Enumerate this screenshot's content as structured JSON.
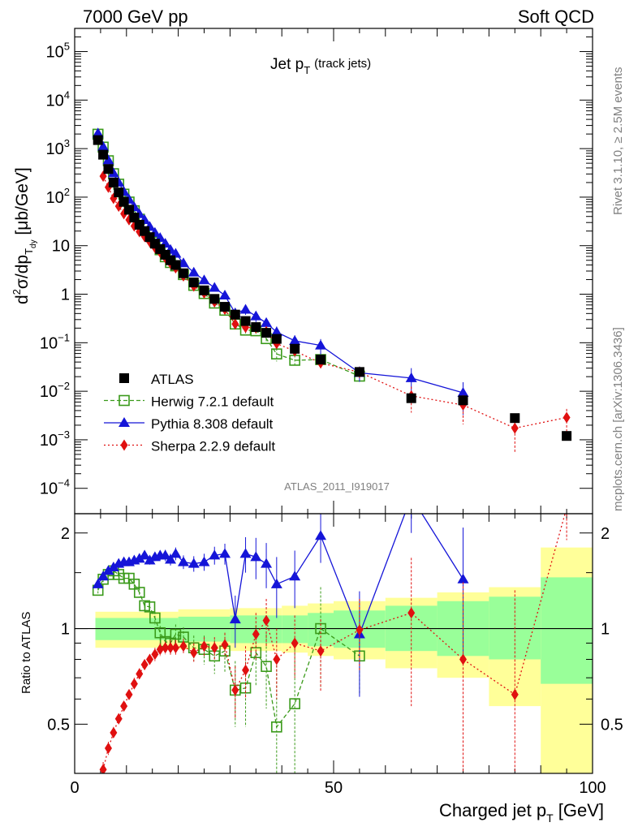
{
  "header": {
    "left": "7000 GeV pp",
    "right": "Soft QCD"
  },
  "chart_data": {
    "type": "scatter",
    "title": "Jet p",
    "title_sub": "T",
    "title_suffix": "(track jets)",
    "ylabel": {
      "main": "d",
      "sup": "2",
      "mid": "σ/dp",
      "sub": "T",
      "subsub": "dy",
      "unit": " [μb/GeV]"
    },
    "xlabel": {
      "main": "Charged jet p",
      "sub": "T",
      "unit": " [GeV]"
    },
    "ratio_ylabel": "Ratio to ATLAS",
    "analysis_tag": "ATLAS_2011_I919017",
    "side_label_top": "Rivet 3.1.10, ≥ 2.5M events",
    "side_label_bottom": "mcplots.cern.ch [arXiv:1306.3436]",
    "xlim": [
      0,
      100
    ],
    "ylim": [
      3e-05,
      300000
    ],
    "ylog": true,
    "ratio_ylim": [
      0.35,
      2.3
    ],
    "xticks": [
      0,
      50,
      100
    ],
    "yticks_main": [
      {
        "v": 100000.0,
        "m": "10",
        "e": "5"
      },
      {
        "v": 10000.0,
        "m": "10",
        "e": "4"
      },
      {
        "v": 1000.0,
        "m": "10",
        "e": "3"
      },
      {
        "v": 100,
        "m": "10",
        "e": "2"
      },
      {
        "v": 10,
        "m": "10",
        "e": ""
      },
      {
        "v": 1,
        "m": "1",
        "e": ""
      },
      {
        "v": 0.1,
        "m": "10",
        "e": "−1"
      },
      {
        "v": 0.01,
        "m": "10",
        "e": "−2"
      },
      {
        "v": 0.001,
        "m": "10",
        "e": "−3"
      },
      {
        "v": 0.0001,
        "m": "10",
        "e": "−4"
      }
    ],
    "yticks_ratio": [
      {
        "v": 2,
        "label": "2"
      },
      {
        "v": 1,
        "label": "1"
      },
      {
        "v": 0.5,
        "label": "0.5"
      }
    ],
    "atlas": {
      "name": "ATLAS",
      "x": [
        4.5,
        5.5,
        6.5,
        7.5,
        8.5,
        9.5,
        10.5,
        11.5,
        12.5,
        13.5,
        14.5,
        15.5,
        16.5,
        17.5,
        18.5,
        19.5,
        21,
        23,
        25,
        27,
        29,
        31,
        33,
        35,
        37,
        39,
        42.5,
        47.5,
        55,
        65,
        75,
        85,
        95
      ],
      "y": [
        1500,
        750,
        380,
        200,
        125,
        80,
        55,
        38,
        27,
        20,
        15,
        11,
        8.5,
        6.5,
        5.0,
        4.0,
        2.7,
        1.75,
        1.2,
        0.8,
        0.55,
        0.38,
        0.28,
        0.21,
        0.16,
        0.12,
        0.075,
        0.045,
        0.025,
        0.0072,
        0.0065,
        0.0028,
        0.0012
      ],
      "bands": [
        {
          "x0": 4,
          "x1": 20,
          "g": [
            0.92,
            1.08
          ],
          "y": [
            0.87,
            1.13
          ]
        },
        {
          "x0": 20,
          "x1": 30,
          "g": [
            0.91,
            1.09
          ],
          "y": [
            0.86,
            1.15
          ]
        },
        {
          "x0": 30,
          "x1": 40,
          "g": [
            0.9,
            1.1
          ],
          "y": [
            0.85,
            1.16
          ]
        },
        {
          "x0": 40,
          "x1": 45,
          "g": [
            0.9,
            1.1
          ],
          "y": [
            0.84,
            1.18
          ]
        },
        {
          "x0": 45,
          "x1": 50,
          "g": [
            0.88,
            1.12
          ],
          "y": [
            0.82,
            1.2
          ]
        },
        {
          "x0": 50,
          "x1": 60,
          "g": [
            0.87,
            1.14
          ],
          "y": [
            0.8,
            1.22
          ]
        },
        {
          "x0": 60,
          "x1": 70,
          "g": [
            0.85,
            1.18
          ],
          "y": [
            0.75,
            1.25
          ]
        },
        {
          "x0": 70,
          "x1": 80,
          "g": [
            0.82,
            1.22
          ],
          "y": [
            0.7,
            1.3
          ]
        },
        {
          "x0": 80,
          "x1": 90,
          "g": [
            0.8,
            1.26
          ],
          "y": [
            0.57,
            1.35
          ]
        },
        {
          "x0": 90,
          "x1": 100,
          "g": [
            0.67,
            1.45
          ],
          "y": [
            0.35,
            1.8
          ]
        }
      ]
    },
    "series": [
      {
        "name": "Herwig 7.2.1 default",
        "color": "#3a9a1a",
        "dash": "5,3",
        "marker": "open-square",
        "x": [
          4.5,
          5.5,
          6.5,
          7.5,
          8.5,
          9.5,
          10.5,
          11.5,
          12.5,
          13.5,
          14.5,
          15.5,
          16.5,
          17.5,
          18.5,
          19.5,
          21,
          23,
          25,
          27,
          29,
          31,
          33,
          35,
          37,
          39,
          42.5,
          47.5,
          55
        ],
        "ratio": [
          1.32,
          1.43,
          1.48,
          1.52,
          1.48,
          1.44,
          1.44,
          1.38,
          1.3,
          1.18,
          1.17,
          1.08,
          0.97,
          0.91,
          0.9,
          0.96,
          0.94,
          0.87,
          0.86,
          0.82,
          0.85,
          0.64,
          0.65,
          0.84,
          0.76,
          0.49,
          0.58,
          1.0,
          0.82
        ],
        "err": [
          0.03,
          0.03,
          0.03,
          0.03,
          0.03,
          0.03,
          0.03,
          0.04,
          0.04,
          0.04,
          0.05,
          0.05,
          0.05,
          0.06,
          0.06,
          0.07,
          0.07,
          0.08,
          0.09,
          0.1,
          0.12,
          0.15,
          0.16,
          0.18,
          0.2,
          0.3,
          0.28,
          0.35,
          0.2
        ]
      },
      {
        "name": "Pythia 8.308 default",
        "color": "#1515d8",
        "dash": "",
        "marker": "triangle",
        "x": [
          4.5,
          5.5,
          6.5,
          7.5,
          8.5,
          9.5,
          10.5,
          11.5,
          12.5,
          13.5,
          14.5,
          15.5,
          16.5,
          17.5,
          18.5,
          19.5,
          21,
          23,
          25,
          27,
          29,
          31,
          33,
          35,
          37,
          39,
          42.5,
          47.5,
          55,
          65,
          75
        ],
        "ratio": [
          1.38,
          1.46,
          1.52,
          1.56,
          1.6,
          1.62,
          1.62,
          1.64,
          1.66,
          1.7,
          1.64,
          1.68,
          1.7,
          1.7,
          1.65,
          1.72,
          1.62,
          1.6,
          1.62,
          1.7,
          1.72,
          1.07,
          1.72,
          1.68,
          1.6,
          1.38,
          1.46,
          1.96,
          0.96,
          2.6,
          1.43
        ],
        "err": [
          0.03,
          0.03,
          0.03,
          0.03,
          0.03,
          0.04,
          0.04,
          0.04,
          0.04,
          0.05,
          0.05,
          0.05,
          0.06,
          0.07,
          0.07,
          0.08,
          0.08,
          0.09,
          0.1,
          0.11,
          0.13,
          0.2,
          0.22,
          0.25,
          0.26,
          0.3,
          0.3,
          0.35,
          0.35,
          0.6,
          0.65
        ]
      },
      {
        "name": "Sherpa 2.2.9 default",
        "color": "#e01010",
        "dash": "2,3",
        "marker": "diamond",
        "x": [
          5.5,
          6.5,
          7.5,
          8.5,
          9.5,
          10.5,
          11.5,
          12.5,
          13.5,
          14.5,
          15.5,
          16.5,
          17.5,
          18.5,
          19.5,
          21,
          23,
          25,
          27,
          29,
          31,
          33,
          35,
          37,
          39,
          42.5,
          47.5,
          55,
          65,
          75,
          85,
          95
        ],
        "ratio": [
          0.36,
          0.42,
          0.47,
          0.52,
          0.57,
          0.62,
          0.67,
          0.72,
          0.77,
          0.8,
          0.83,
          0.86,
          0.87,
          0.87,
          0.87,
          0.88,
          0.84,
          0.88,
          0.87,
          0.89,
          0.64,
          0.74,
          0.96,
          1.06,
          0.8,
          0.9,
          0.85,
          0.99,
          1.12,
          0.8,
          0.62,
          2.4
        ],
        "err": [
          0.02,
          0.02,
          0.02,
          0.02,
          0.02,
          0.02,
          0.03,
          0.03,
          0.03,
          0.03,
          0.04,
          0.04,
          0.04,
          0.05,
          0.05,
          0.05,
          0.06,
          0.06,
          0.07,
          0.08,
          0.12,
          0.14,
          0.16,
          0.18,
          0.2,
          0.2,
          0.22,
          0.25,
          0.55,
          0.6,
          0.7,
          0.5
        ]
      }
    ],
    "legend_position": "lower-left"
  }
}
